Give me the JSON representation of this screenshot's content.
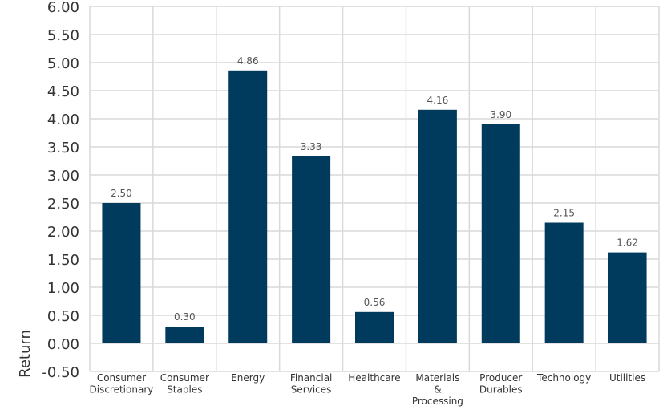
{
  "chart_data": {
    "type": "bar",
    "title": "",
    "xlabel": "",
    "ylabel": "Return",
    "categories": [
      [
        "Consumer",
        "Discretionary"
      ],
      [
        "Consumer",
        "Staples"
      ],
      [
        "Energy"
      ],
      [
        "Financial",
        "Services"
      ],
      [
        "Healthcare"
      ],
      [
        "Materials",
        "&",
        "Processing"
      ],
      [
        "Producer",
        "Durables"
      ],
      [
        "Technology"
      ],
      [
        "Utilities"
      ]
    ],
    "values": [
      2.5,
      0.3,
      4.86,
      3.33,
      0.56,
      4.16,
      3.9,
      2.15,
      1.62
    ],
    "value_labels": [
      "2.50",
      "0.30",
      "4.86",
      "3.33",
      "0.56",
      "4.16",
      "3.90",
      "2.15",
      "1.62"
    ],
    "yticks": [
      -0.5,
      0,
      0.5,
      1,
      1.5,
      2,
      2.5,
      3,
      3.5,
      4,
      4.5,
      5,
      5.5,
      6
    ],
    "ytick_labels": [
      "-0.50",
      "0.00",
      "0.50",
      "1.00",
      "1.50",
      "2.00",
      "2.50",
      "3.00",
      "3.50",
      "4.00",
      "4.50",
      "5.00",
      "5.50",
      "6.00"
    ],
    "ylim": [
      -0.5,
      6.0
    ],
    "grid": true,
    "legend": "none",
    "colors": {
      "bar": "#003a5c",
      "grid": "#d9d9d9",
      "tick_text": "#333333",
      "label_text": "#555555"
    }
  }
}
